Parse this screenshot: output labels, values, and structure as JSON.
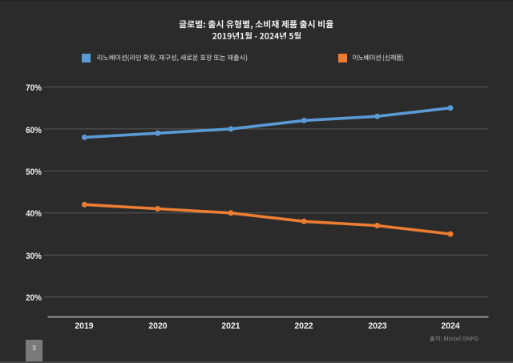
{
  "slide": {
    "title_line1": "글로벌: 출시 유형별, 소비재 제품 출시 비율",
    "title_line2": "2019년1월 - 2024년 5월",
    "page_number": "3",
    "source_note": "출처: Mintel GNPD"
  },
  "legend": {
    "items": [
      {
        "label": "리노베이션(라인 확장, 재구성, 새로운 포장 또는 재출시)",
        "color": "#5b9bd5"
      },
      {
        "label": "이노베이션 (신제품)",
        "color": "#ed7d31"
      }
    ]
  },
  "chart_data": {
    "type": "line",
    "title": "글로벌: 출시 유형별, 소비재 제품 출시 비율 2019년1월 - 2024년 5월",
    "categories": [
      "2019",
      "2020",
      "2021",
      "2022",
      "2023",
      "2024"
    ],
    "series": [
      {
        "name": "리노베이션(라인 확장, 재구성, 새로운 포장 또는 재출시)",
        "color": "#5b9bd5",
        "values": [
          58,
          59,
          60,
          62,
          63,
          65
        ]
      },
      {
        "name": "이노베이션 (신제품)",
        "color": "#ed7d31",
        "values": [
          42,
          41,
          40,
          38,
          37,
          35
        ]
      }
    ],
    "y_ticks": [
      20,
      30,
      40,
      50,
      60,
      70
    ],
    "y_tick_labels": [
      "20%",
      "30%",
      "40%",
      "50%",
      "60%",
      "70%"
    ],
    "ylim": [
      15.2,
      70
    ],
    "xlabel": "",
    "ylabel": "",
    "grid": true,
    "legend_position": "top",
    "marker": "circle"
  },
  "colors": {
    "background": "#2b2b2b",
    "gridline": "#595959",
    "axis_line": "#a6a6a6",
    "text": "#f2f2f2",
    "source_text": "#8c8c8c",
    "page_box": "#7a7a7a"
  }
}
